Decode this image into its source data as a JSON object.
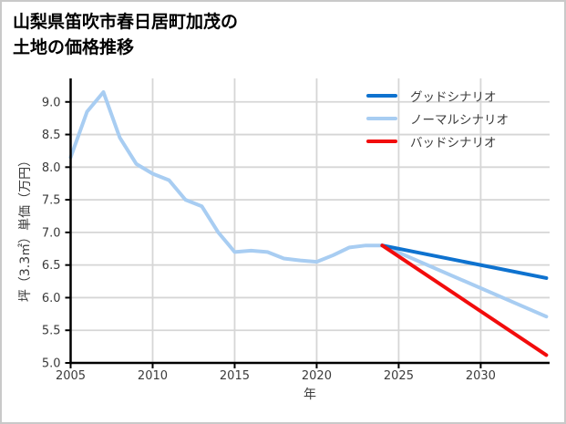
{
  "window": {
    "background": "#ffffff",
    "border_color": "#c9c9c9"
  },
  "title": {
    "line1": "山梨県笛吹市春日居町加茂の",
    "line2": "土地の価格推移"
  },
  "legend": {
    "entries": [
      {
        "label": "グッドシナリオ",
        "color": "#0e72cf"
      },
      {
        "label": "ノーマルシナリオ",
        "color": "#a8cdf2"
      },
      {
        "label": "バッドシナリオ",
        "color": "#f20c0c"
      }
    ]
  },
  "chart_data": {
    "type": "line",
    "title": "山梨県笛吹市春日居町加茂の\n土地の価格推移",
    "xlabel": "年",
    "ylabel": "坪（3.3㎡）単価（万円）",
    "xlim": [
      2005,
      2034.2
    ],
    "ylim": [
      5.0,
      9.36
    ],
    "x_ticks": [
      2005,
      2010,
      2015,
      2020,
      2025,
      2030
    ],
    "y_ticks": [
      5.0,
      5.5,
      6.0,
      6.5,
      7.0,
      7.5,
      8.0,
      8.5,
      9.0
    ],
    "grid": true,
    "grid_color": "#d6d6d6",
    "axis_color": "#000000",
    "legend_position": "upper right",
    "series": [
      {
        "name": "ノーマルシナリオ",
        "color": "#a8cdf2",
        "x": [
          2005,
          2006,
          2007,
          2008,
          2009,
          2010,
          2011,
          2012,
          2013,
          2014,
          2015,
          2016,
          2017,
          2018,
          2019,
          2020,
          2021,
          2022,
          2023,
          2024,
          2034
        ],
        "y": [
          8.15,
          8.85,
          9.15,
          8.45,
          8.05,
          7.9,
          7.8,
          7.5,
          7.4,
          7.0,
          6.7,
          6.72,
          6.7,
          6.6,
          6.57,
          6.55,
          6.65,
          6.77,
          6.8,
          6.8,
          5.71
        ]
      },
      {
        "name": "グッドシナリオ",
        "color": "#0e72cf",
        "x": [
          2024,
          2034
        ],
        "y": [
          6.8,
          6.3
        ]
      },
      {
        "name": "バッドシナリオ",
        "color": "#f20c0c",
        "x": [
          2024,
          2034
        ],
        "y": [
          6.8,
          5.12
        ]
      }
    ]
  }
}
